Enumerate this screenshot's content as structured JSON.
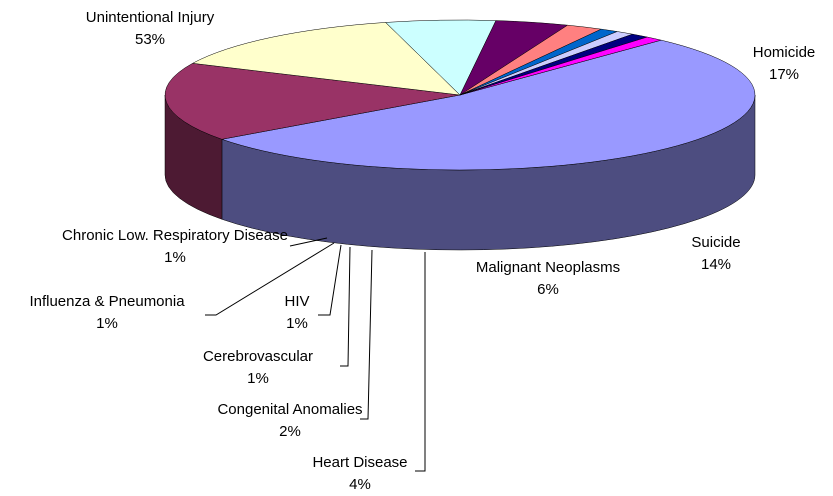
{
  "chart_data": {
    "type": "pie",
    "categories": [
      "Unintentional Injury",
      "Homicide",
      "Suicide",
      "Malignant Neoplasms",
      "Heart Disease",
      "Congenital Anomalies",
      "Cerebrovascular",
      "HIV",
      "Influenza & Pneumonia",
      "Chronic Low. Respiratory Disease"
    ],
    "values": [
      53,
      17,
      14,
      6,
      4,
      2,
      1,
      1,
      1,
      1
    ],
    "value_labels": [
      "53%",
      "17%",
      "14%",
      "6%",
      "4%",
      "2%",
      "1%",
      "1%",
      "1%",
      "1%"
    ],
    "colors": [
      "#9999ff",
      "#993366",
      "#ffffcc",
      "#ccffff",
      "#660066",
      "#ff8080",
      "#0066cc",
      "#ccccff",
      "#000080",
      "#ff00ff"
    ]
  }
}
